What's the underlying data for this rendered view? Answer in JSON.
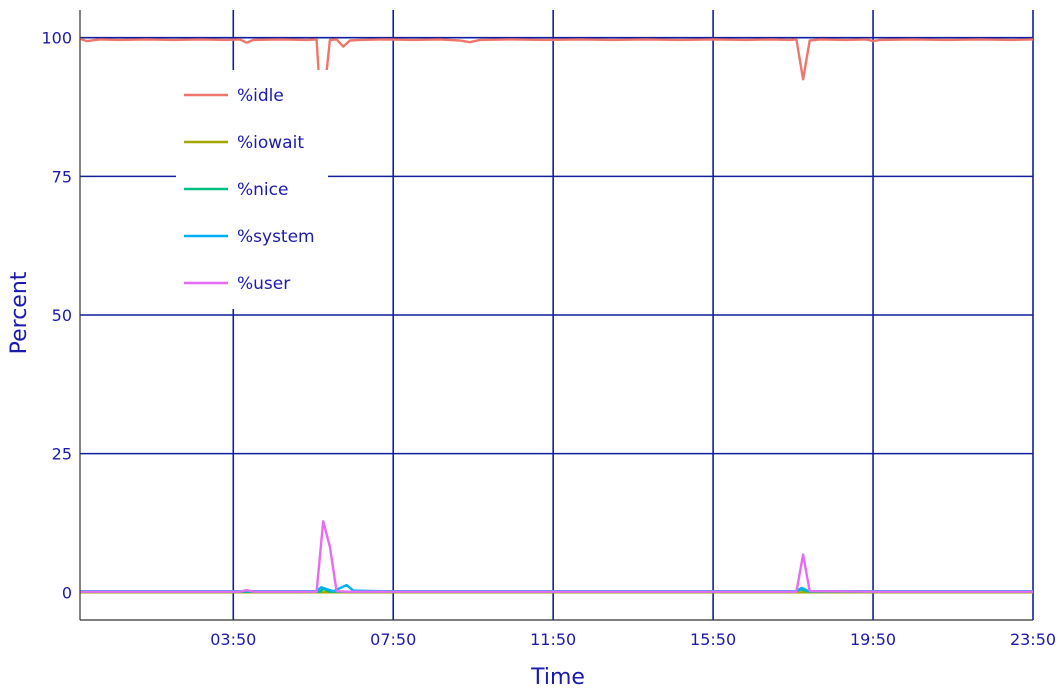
{
  "chart_data": {
    "type": "line",
    "xlabel": "Time",
    "ylabel": "Percent",
    "x_ticks": [
      "03:50",
      "07:50",
      "11:50",
      "15:50",
      "19:50",
      "23:50"
    ],
    "y_ticks": [
      "0",
      "25",
      "50",
      "75",
      "100"
    ],
    "xlim_minutes": [
      0,
      1430
    ],
    "ylim": [
      -5,
      105
    ],
    "grid": true,
    "legend_position": "top-left",
    "series": [
      {
        "name": "%idle",
        "color": "#f0766b",
        "points": [
          [
            0,
            99.8
          ],
          [
            10,
            99.4
          ],
          [
            30,
            99.7
          ],
          [
            60,
            99.6
          ],
          [
            100,
            99.7
          ],
          [
            140,
            99.6
          ],
          [
            180,
            99.7
          ],
          [
            220,
            99.6
          ],
          [
            240,
            99.7
          ],
          [
            250,
            99.1
          ],
          [
            260,
            99.6
          ],
          [
            300,
            99.7
          ],
          [
            340,
            99.6
          ],
          [
            355,
            99.7
          ],
          [
            358,
            93.8
          ],
          [
            365,
            88
          ],
          [
            375,
            99.6
          ],
          [
            385,
            99.7
          ],
          [
            395,
            98.4
          ],
          [
            405,
            99.5
          ],
          [
            420,
            99.6
          ],
          [
            460,
            99.7
          ],
          [
            500,
            99.6
          ],
          [
            540,
            99.7
          ],
          [
            570,
            99.5
          ],
          [
            585,
            99.2
          ],
          [
            600,
            99.6
          ],
          [
            650,
            99.7
          ],
          [
            700,
            99.6
          ],
          [
            750,
            99.7
          ],
          [
            800,
            99.6
          ],
          [
            850,
            99.7
          ],
          [
            900,
            99.6
          ],
          [
            950,
            99.7
          ],
          [
            1000,
            99.6
          ],
          [
            1040,
            99.7
          ],
          [
            1065,
            99.6
          ],
          [
            1075,
            99.7
          ],
          [
            1085,
            92.5
          ],
          [
            1095,
            99.5
          ],
          [
            1110,
            99.7
          ],
          [
            1150,
            99.6
          ],
          [
            1180,
            99.7
          ],
          [
            1190,
            99.4
          ],
          [
            1200,
            99.6
          ],
          [
            1250,
            99.7
          ],
          [
            1300,
            99.6
          ],
          [
            1350,
            99.7
          ],
          [
            1400,
            99.6
          ],
          [
            1430,
            99.7
          ]
        ]
      },
      {
        "name": "%iowait",
        "color": "#a3a500",
        "points": [
          [
            0,
            0
          ],
          [
            1430,
            0
          ]
        ]
      },
      {
        "name": "%nice",
        "color": "#00bf7d",
        "points": [
          [
            0,
            0.1
          ],
          [
            200,
            0.1
          ],
          [
            360,
            0.1
          ],
          [
            365,
            0.6
          ],
          [
            375,
            0.1
          ],
          [
            1070,
            0.1
          ],
          [
            1082,
            0.5
          ],
          [
            1095,
            0.1
          ],
          [
            1430,
            0.1
          ]
        ]
      },
      {
        "name": "%system",
        "color": "#00b0f6",
        "points": [
          [
            0,
            0.2
          ],
          [
            100,
            0.2
          ],
          [
            200,
            0.2
          ],
          [
            250,
            0.2
          ],
          [
            300,
            0.2
          ],
          [
            355,
            0.2
          ],
          [
            362,
            0.9
          ],
          [
            372,
            0.5
          ],
          [
            380,
            0.2
          ],
          [
            400,
            1.3
          ],
          [
            410,
            0.3
          ],
          [
            450,
            0.2
          ],
          [
            600,
            0.2
          ],
          [
            800,
            0.2
          ],
          [
            1000,
            0.2
          ],
          [
            1075,
            0.2
          ],
          [
            1083,
            0.8
          ],
          [
            1093,
            0.2
          ],
          [
            1200,
            0.2
          ],
          [
            1430,
            0.2
          ]
        ]
      },
      {
        "name": "%user",
        "color": "#e76bf3",
        "points": [
          [
            0,
            0.1
          ],
          [
            100,
            0.1
          ],
          [
            240,
            0.1
          ],
          [
            250,
            0.4
          ],
          [
            260,
            0.1
          ],
          [
            355,
            0.1
          ],
          [
            365,
            12.8
          ],
          [
            375,
            8.2
          ],
          [
            385,
            0.2
          ],
          [
            400,
            0.1
          ],
          [
            600,
            0.1
          ],
          [
            800,
            0.1
          ],
          [
            1000,
            0.1
          ],
          [
            1075,
            0.1
          ],
          [
            1085,
            6.8
          ],
          [
            1095,
            0.2
          ],
          [
            1200,
            0.1
          ],
          [
            1430,
            0.1
          ]
        ]
      }
    ]
  }
}
